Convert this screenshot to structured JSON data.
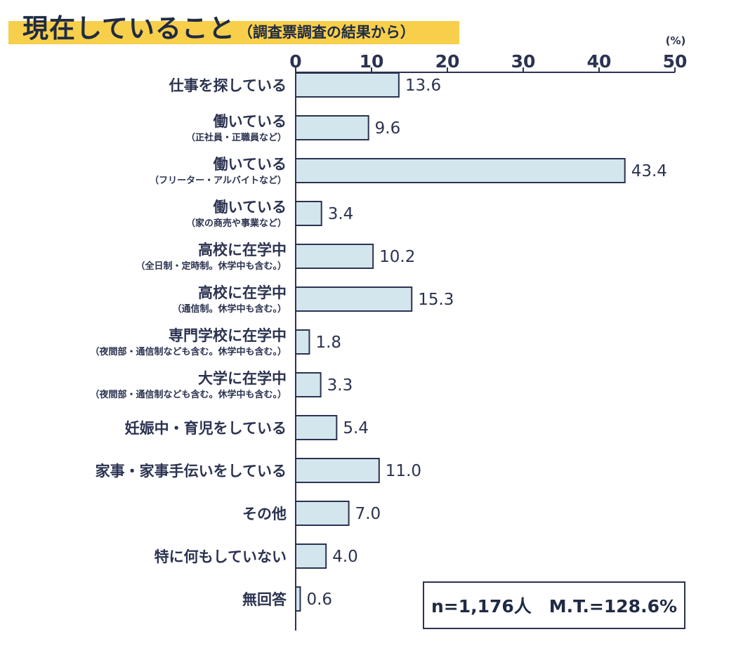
{
  "title": "現在していること",
  "subtitle": "（調査票調査の結果から）",
  "summary": "n=1,176人　M.T.=128.6%",
  "chart_data": {
    "type": "bar",
    "orientation": "horizontal",
    "unit": "(%)",
    "xlim": [
      0,
      50
    ],
    "ticks": [
      0,
      10,
      20,
      30,
      40,
      50
    ],
    "grid": false,
    "bar_color": "#d3e6ee",
    "bar_edge_color": "#2b3350",
    "categories": [
      {
        "label": "仕事を探している",
        "sub": "",
        "value": 13.6,
        "value_label": "13.6"
      },
      {
        "label": "働いている",
        "sub": "（正社員・正職員など）",
        "value": 9.6,
        "value_label": "9.6"
      },
      {
        "label": "働いている",
        "sub": "（フリーター・アルバイトなど）",
        "value": 43.4,
        "value_label": "43.4"
      },
      {
        "label": "働いている",
        "sub": "（家の商売や事業など）",
        "value": 3.4,
        "value_label": "3.4"
      },
      {
        "label": "高校に在学中",
        "sub": "（全日制・定時制。休学中も含む。）",
        "value": 10.2,
        "value_label": "10.2"
      },
      {
        "label": "高校に在学中",
        "sub": "（通信制。休学中も含む。）",
        "value": 15.3,
        "value_label": "15.3"
      },
      {
        "label": "専門学校に在学中",
        "sub": "（夜間部・通信制なども含む。休学中も含む。）",
        "value": 1.8,
        "value_label": "1.8"
      },
      {
        "label": "大学に在学中",
        "sub": "（夜間部・通信制なども含む。休学中も含む。）",
        "value": 3.3,
        "value_label": "3.3"
      },
      {
        "label": "妊娠中・育児をしている",
        "sub": "",
        "value": 5.4,
        "value_label": "5.4"
      },
      {
        "label": "家事・家事手伝いをしている",
        "sub": "",
        "value": 11.0,
        "value_label": "11.0"
      },
      {
        "label": "その他",
        "sub": "",
        "value": 7.0,
        "value_label": "7.0"
      },
      {
        "label": "特に何もしていない",
        "sub": "",
        "value": 4.0,
        "value_label": "4.0"
      },
      {
        "label": "無回答",
        "sub": "",
        "value": 0.6,
        "value_label": "0.6"
      }
    ]
  }
}
